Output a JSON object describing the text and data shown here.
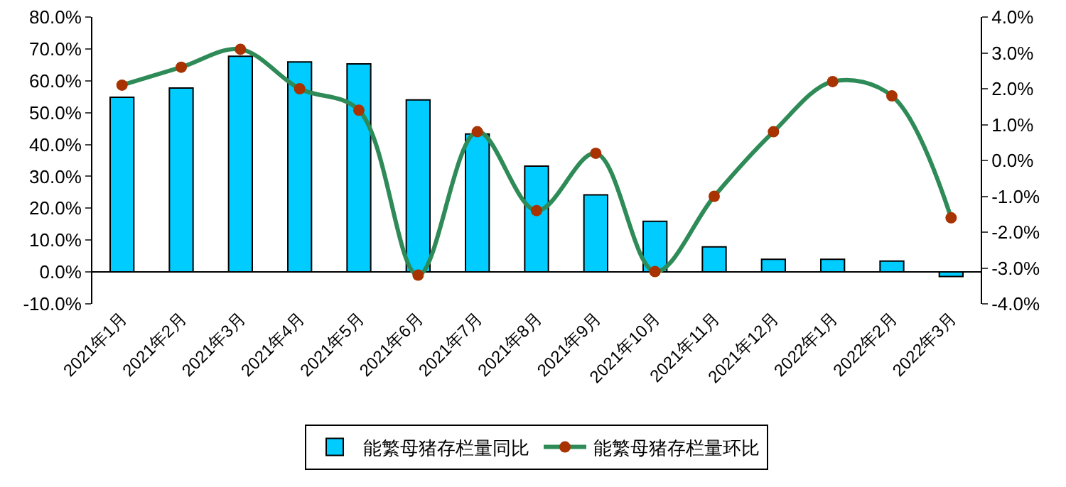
{
  "chart_data": {
    "type": "bar",
    "categories": [
      "2021年1月",
      "2021年2月",
      "2021年3月",
      "2021年4月",
      "2021年5月",
      "2021年6月",
      "2021年7月",
      "2021年8月",
      "2021年9月",
      "2021年10月",
      "2021年11月",
      "2021年12月",
      "2022年1月",
      "2022年2月",
      "2022年3月"
    ],
    "series": [
      {
        "name": "能繁母猪存栏量同比",
        "color": "#00ccff",
        "values": [
          54.8,
          57.7,
          67.7,
          65.9,
          65.3,
          54.0,
          43.3,
          33.2,
          24.2,
          15.9,
          7.9,
          4.0,
          4.0,
          3.4,
          -1.4
        ]
      },
      {
        "name": "能繁母猪存栏量环比",
        "type": "line",
        "axis": "y2",
        "color": "#2e8b57",
        "marker": "circle",
        "values": [
          2.1,
          2.6,
          3.1,
          2.0,
          1.4,
          -3.2,
          0.8,
          -1.4,
          0.2,
          -3.1,
          -1.0,
          0.8,
          2.2,
          1.8,
          -1.6
        ]
      }
    ],
    "ylim": [
      -10,
      80
    ],
    "yticks": [
      {
        "value": -10,
        "label": "-10.0%"
      },
      {
        "value": 0,
        "label": "0.0%"
      },
      {
        "value": 10,
        "label": "10.0%"
      },
      {
        "value": 20,
        "label": "20.0%"
      },
      {
        "value": 30,
        "label": "30.0%"
      },
      {
        "value": 40,
        "label": "40.0%"
      },
      {
        "value": 50,
        "label": "50.0%"
      },
      {
        "value": 60,
        "label": "60.0%"
      },
      {
        "value": 70,
        "label": "70.0%"
      },
      {
        "value": 80,
        "label": "80.0%"
      }
    ],
    "y2lim": [
      -4,
      4
    ],
    "y2ticks": [
      {
        "value": -4,
        "label": "-4.0%"
      },
      {
        "value": -3,
        "label": "-3.0%"
      },
      {
        "value": -2,
        "label": "-2.0%"
      },
      {
        "value": -1,
        "label": "-1.0%"
      },
      {
        "value": 0,
        "label": "0.0%"
      },
      {
        "value": 1,
        "label": "1.0%"
      },
      {
        "value": 2,
        "label": "2.0%"
      },
      {
        "value": 3,
        "label": "3.0%"
      },
      {
        "value": 4,
        "label": "4.0%"
      }
    ],
    "grid": false,
    "legend": "bottom"
  }
}
